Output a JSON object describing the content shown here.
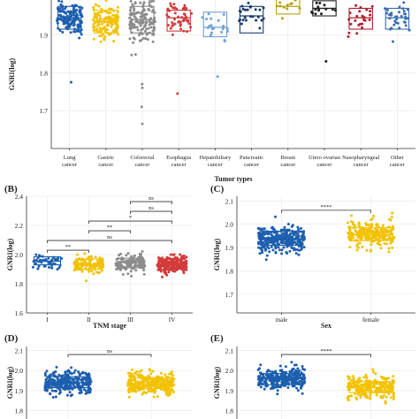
{
  "figure": {
    "panels": [
      {
        "letter": "(B)"
      },
      {
        "letter": "(C)"
      },
      {
        "letter": "(D)"
      },
      {
        "letter": "(E)"
      }
    ]
  },
  "colors": {
    "blue": "#1d5fae",
    "gold": "#f2c200",
    "gray": "#8c8c8c",
    "red": "#d33b3b",
    "lightblue": "#6ea2d8",
    "navy": "#1a3a6b",
    "olive": "#b8a010",
    "black": "#222222",
    "darkred": "#b02030",
    "steel": "#3a6cb0"
  },
  "chart_data": [
    {
      "id": "A",
      "type": "box",
      "title": "",
      "xlabel": "Tumor types",
      "ylabel": "GNRI(log)",
      "ylim": [
        1.6,
        2.02
      ],
      "yticks": [
        "1.7",
        "1.8",
        "1.9"
      ],
      "ytick_values": [
        1.7,
        1.8,
        1.9
      ],
      "grid": true,
      "categories": [
        "Lung cancer",
        "Gastric cancer",
        "Colorectal cancer",
        "Esophagus cancer",
        "Hepatobiliary cancer",
        "Pancreatic cancer",
        "Breast cancer",
        "Utero ovarian cancer",
        "Nasopharyngeal cancer",
        "Other cancer"
      ],
      "category_lines": [
        [
          "Lung",
          "cancer"
        ],
        [
          "Gastric",
          "cancer"
        ],
        [
          "Colorectal",
          "cancer"
        ],
        [
          "Esophagus",
          "cancer"
        ],
        [
          "Hepatobiliary",
          "cancer"
        ],
        [
          "Pancreatic",
          "cancer"
        ],
        [
          "Breast",
          "cancer"
        ],
        [
          "Utero ovarian",
          "cancer"
        ],
        [
          "Nasopharyngeal",
          "cancer"
        ],
        [
          "Other",
          "cancer"
        ]
      ],
      "boxes": [
        {
          "median": 1.945,
          "q1": 1.915,
          "q3": 1.975,
          "n": 150,
          "spread": 0.04
        },
        {
          "median": 1.935,
          "q1": 1.905,
          "q3": 1.965,
          "n": 140,
          "spread": 0.04
        },
        {
          "median": 1.94,
          "q1": 1.905,
          "q3": 1.975,
          "n": 150,
          "spread": 0.05
        },
        {
          "median": 1.945,
          "q1": 1.91,
          "q3": 1.965,
          "n": 55,
          "spread": 0.04
        },
        {
          "median": 1.92,
          "q1": 1.895,
          "q3": 1.96,
          "n": 20,
          "spread": 0.04
        },
        {
          "median": 1.95,
          "q1": 1.905,
          "q3": 1.975,
          "n": 25,
          "spread": 0.04
        },
        {
          "median": 1.975,
          "q1": 1.955,
          "q3": 1.995,
          "n": 15,
          "spread": 0.03
        },
        {
          "median": 1.97,
          "q1": 1.95,
          "q3": 1.99,
          "n": 15,
          "spread": 0.03
        },
        {
          "median": 1.945,
          "q1": 1.915,
          "q3": 1.97,
          "n": 25,
          "spread": 0.04
        },
        {
          "median": 1.945,
          "q1": 1.915,
          "q3": 1.97,
          "n": 35,
          "spread": 0.04
        }
      ],
      "colors": [
        "#1d5fae",
        "#f2c200",
        "#8c8c8c",
        "#d33b3b",
        "#6ea2d8",
        "#1a3a6b",
        "#b8a010",
        "#222222",
        "#b02030",
        "#3a6cb0"
      ],
      "outliers": [
        {
          "group": 0,
          "y": 1.775
        },
        {
          "group": 2,
          "y": 1.77
        },
        {
          "group": 2,
          "y": 1.76
        },
        {
          "group": 2,
          "y": 1.71
        },
        {
          "group": 2,
          "y": 1.665
        },
        {
          "group": 3,
          "y": 1.745
        },
        {
          "group": 4,
          "y": 1.79
        },
        {
          "group": 7,
          "y": 1.83
        }
      ]
    },
    {
      "id": "B",
      "type": "box",
      "title": "",
      "xlabel": "TNM stage",
      "ylabel": "GNRI(log)",
      "ylim": [
        1.6,
        2.4
      ],
      "yticks": [
        "1.6",
        "1.8",
        "2.0",
        "2.2",
        "2.4"
      ],
      "ytick_values": [
        1.6,
        1.8,
        2.0,
        2.2,
        2.4
      ],
      "grid": true,
      "categories": [
        "I",
        "II",
        "III",
        "IV"
      ],
      "boxes": [
        {
          "median": 1.955,
          "q1": 1.93,
          "q3": 1.985,
          "n": 45,
          "spread": 0.045
        },
        {
          "median": 1.93,
          "q1": 1.9,
          "q3": 1.97,
          "n": 150,
          "spread": 0.05
        },
        {
          "median": 1.945,
          "q1": 1.91,
          "q3": 1.975,
          "n": 150,
          "spread": 0.05
        },
        {
          "median": 1.935,
          "q1": 1.9,
          "q3": 1.97,
          "n": 250,
          "spread": 0.05
        }
      ],
      "colors": [
        "#1d5fae",
        "#f2c200",
        "#8c8c8c",
        "#d33b3b"
      ],
      "comparisons": [
        {
          "from": 0,
          "to": 1,
          "label": "**"
        },
        {
          "from": 0,
          "to": 3,
          "label": "ns"
        },
        {
          "from": 1,
          "to": 2,
          "label": "**"
        },
        {
          "from": 1,
          "to": 3,
          "label": "*"
        },
        {
          "from": 2,
          "to": 3,
          "label": "ns"
        },
        {
          "from": 2,
          "to": 3,
          "label": "ns"
        }
      ]
    },
    {
      "id": "C",
      "type": "box",
      "title": "",
      "xlabel": "Sex",
      "ylabel": "GNRI(log)",
      "ylim": [
        1.62,
        2.12
      ],
      "yticks": [
        "1.7",
        "1.8",
        "1.9",
        "2.0",
        "2.1"
      ],
      "ytick_values": [
        1.7,
        1.8,
        1.9,
        2.0,
        2.1
      ],
      "grid": true,
      "categories": [
        "male",
        "female"
      ],
      "boxes": [
        {
          "median": 1.935,
          "q1": 1.91,
          "q3": 1.97,
          "n": 320,
          "spread": 0.05
        },
        {
          "median": 1.955,
          "q1": 1.93,
          "q3": 1.985,
          "n": 260,
          "spread": 0.05
        }
      ],
      "colors": [
        "#1d5fae",
        "#f2c200"
      ],
      "comparisons": [
        {
          "from": 0,
          "to": 1,
          "label": "****"
        }
      ]
    },
    {
      "id": "D",
      "type": "box",
      "title": "",
      "xlabel": "",
      "ylabel": "GNRI(log)",
      "ylim": [
        1.75,
        2.12
      ],
      "yticks": [
        "1.8",
        "1.9",
        "2.0",
        "2.1"
      ],
      "ytick_values": [
        1.8,
        1.9,
        2.0,
        2.1
      ],
      "grid": true,
      "categories": [
        "",
        ""
      ],
      "boxes": [
        {
          "median": 1.94,
          "q1": 1.915,
          "q3": 1.97,
          "n": 300,
          "spread": 0.05
        },
        {
          "median": 1.935,
          "q1": 1.91,
          "q3": 1.965,
          "n": 300,
          "spread": 0.05
        }
      ],
      "colors": [
        "#1d5fae",
        "#f2c200"
      ],
      "comparisons": [
        {
          "from": 0,
          "to": 1,
          "label": "ns"
        }
      ]
    },
    {
      "id": "E",
      "type": "box",
      "title": "",
      "xlabel": "",
      "ylabel": "GNRI(log)",
      "ylim": [
        1.75,
        2.12
      ],
      "yticks": [
        "1.8",
        "1.9",
        "2.0",
        "2.1"
      ],
      "ytick_values": [
        1.8,
        1.9,
        2.0,
        2.1
      ],
      "grid": true,
      "categories": [
        "",
        ""
      ],
      "boxes": [
        {
          "median": 1.96,
          "q1": 1.93,
          "q3": 1.985,
          "n": 300,
          "spread": 0.05
        },
        {
          "median": 1.915,
          "q1": 1.89,
          "q3": 1.945,
          "n": 250,
          "spread": 0.05
        }
      ],
      "colors": [
        "#1d5fae",
        "#f2c200"
      ],
      "comparisons": [
        {
          "from": 0,
          "to": 1,
          "label": "****"
        }
      ]
    }
  ]
}
